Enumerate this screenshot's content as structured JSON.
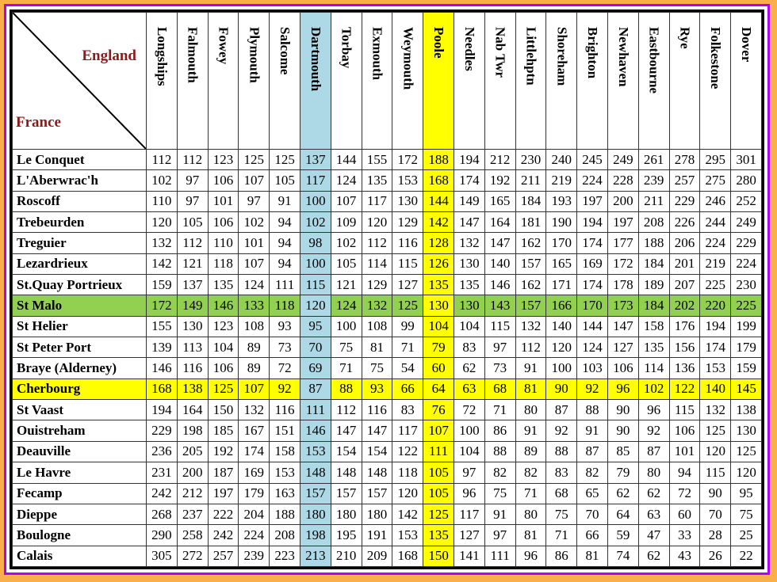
{
  "corner": {
    "top_label": "England",
    "bottom_label": "France"
  },
  "columns": [
    "Longships",
    "Falmouth",
    "Fowey",
    "Plymouth",
    "Salcome",
    "Dartmouth",
    "Torbay",
    "Exmouth",
    "Weymouth",
    "Poole",
    "Needles",
    "Nab Twr",
    "Littlehptn",
    "Shoreham",
    "Brighton",
    "Newhaven",
    "Eastbourne",
    "Rye",
    "Folkestone",
    "Dover"
  ],
  "highlight": {
    "columns": {
      "Dartmouth": "#add8e6",
      "Poole": "#ffff00"
    },
    "rows": {
      "St Malo": "#92d050",
      "Cherbourg": "#ffff00"
    }
  },
  "rows": [
    {
      "name": "Le Conquet",
      "values": [
        112,
        112,
        123,
        125,
        125,
        137,
        144,
        155,
        172,
        188,
        194,
        212,
        230,
        240,
        245,
        249,
        261,
        278,
        295,
        301
      ]
    },
    {
      "name": "L'Aberwrac'h",
      "values": [
        102,
        97,
        106,
        107,
        105,
        117,
        124,
        135,
        153,
        168,
        174,
        192,
        211,
        219,
        224,
        228,
        239,
        257,
        275,
        280
      ]
    },
    {
      "name": "Roscoff",
      "values": [
        110,
        97,
        101,
        97,
        91,
        100,
        107,
        117,
        130,
        144,
        149,
        165,
        184,
        193,
        197,
        200,
        211,
        229,
        246,
        252
      ]
    },
    {
      "name": "Trebeurden",
      "values": [
        120,
        105,
        106,
        102,
        94,
        102,
        109,
        120,
        129,
        142,
        147,
        164,
        181,
        190,
        194,
        197,
        208,
        226,
        244,
        249
      ]
    },
    {
      "name": "Treguier",
      "values": [
        132,
        112,
        110,
        101,
        94,
        98,
        102,
        112,
        116,
        128,
        132,
        147,
        162,
        170,
        174,
        177,
        188,
        206,
        224,
        229
      ]
    },
    {
      "name": "Lezardrieux",
      "values": [
        142,
        121,
        118,
        107,
        94,
        100,
        105,
        114,
        115,
        126,
        130,
        140,
        157,
        165,
        169,
        172,
        184,
        201,
        219,
        224
      ]
    },
    {
      "name": "St.Quay Portrieux",
      "values": [
        159,
        137,
        135,
        124,
        111,
        115,
        121,
        129,
        127,
        135,
        135,
        146,
        162,
        171,
        174,
        178,
        189,
        207,
        225,
        230
      ]
    },
    {
      "name": "St Malo",
      "values": [
        172,
        149,
        146,
        133,
        118,
        120,
        124,
        132,
        125,
        130,
        130,
        143,
        157,
        166,
        170,
        173,
        184,
        202,
        220,
        225
      ]
    },
    {
      "name": "St Helier",
      "values": [
        155,
        130,
        123,
        108,
        93,
        95,
        100,
        108,
        99,
        104,
        104,
        115,
        132,
        140,
        144,
        147,
        158,
        176,
        194,
        199
      ]
    },
    {
      "name": "St Peter Port",
      "values": [
        139,
        113,
        104,
        89,
        73,
        70,
        75,
        81,
        71,
        79,
        83,
        97,
        112,
        120,
        124,
        127,
        135,
        156,
        174,
        179
      ]
    },
    {
      "name": "Braye (Alderney)",
      "values": [
        146,
        116,
        106,
        89,
        72,
        69,
        71,
        75,
        54,
        60,
        62,
        73,
        91,
        100,
        103,
        106,
        114,
        136,
        153,
        159
      ]
    },
    {
      "name": "Cherbourg",
      "values": [
        168,
        138,
        125,
        107,
        92,
        87,
        88,
        93,
        66,
        64,
        63,
        68,
        81,
        90,
        92,
        96,
        102,
        122,
        140,
        145
      ]
    },
    {
      "name": "St Vaast",
      "values": [
        194,
        164,
        150,
        132,
        116,
        111,
        112,
        116,
        83,
        76,
        72,
        71,
        80,
        87,
        88,
        90,
        96,
        115,
        132,
        138
      ]
    },
    {
      "name": "Ouistreham",
      "values": [
        229,
        198,
        185,
        167,
        151,
        146,
        147,
        147,
        117,
        107,
        100,
        86,
        91,
        92,
        91,
        90,
        92,
        106,
        125,
        130
      ]
    },
    {
      "name": "Deauville",
      "values": [
        236,
        205,
        192,
        174,
        158,
        153,
        154,
        154,
        122,
        111,
        104,
        88,
        89,
        88,
        87,
        85,
        87,
        101,
        120,
        125
      ]
    },
    {
      "name": "Le Havre",
      "values": [
        231,
        200,
        187,
        169,
        153,
        148,
        148,
        148,
        118,
        105,
        97,
        82,
        82,
        83,
        82,
        79,
        80,
        94,
        115,
        120
      ]
    },
    {
      "name": "Fecamp",
      "values": [
        242,
        212,
        197,
        179,
        163,
        157,
        157,
        157,
        120,
        105,
        96,
        75,
        71,
        68,
        65,
        62,
        62,
        72,
        90,
        95
      ]
    },
    {
      "name": "Dieppe",
      "values": [
        268,
        237,
        222,
        204,
        188,
        180,
        180,
        180,
        142,
        125,
        117,
        91,
        80,
        75,
        70,
        64,
        63,
        60,
        70,
        75
      ]
    },
    {
      "name": "Boulogne",
      "values": [
        290,
        258,
        242,
        224,
        208,
        198,
        195,
        191,
        153,
        135,
        127,
        97,
        81,
        71,
        66,
        59,
        47,
        33,
        28,
        25
      ]
    },
    {
      "name": "Calais",
      "values": [
        305,
        272,
        257,
        239,
        223,
        213,
        210,
        209,
        168,
        150,
        141,
        111,
        96,
        86,
        81,
        74,
        62,
        43,
        26,
        22
      ]
    }
  ]
}
